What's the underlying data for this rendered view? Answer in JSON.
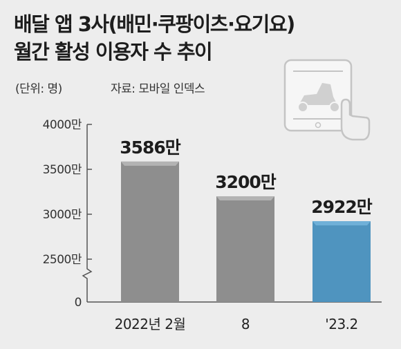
{
  "header": {
    "title_line1": "배달 앱 3사(배민·쿠팡이츠·요기요)",
    "title_line2": "월간 활성 이용자 수 추이",
    "unit": "(단위: 명)",
    "source": "자료: 모바일 인덱스"
  },
  "icons": [
    "tablet-scooter-icon",
    "pointing-hand-icon"
  ],
  "colors": {
    "bar_gray": "#8e8e8e",
    "bar_blue": "#4f94bf"
  },
  "chart_data": {
    "type": "bar",
    "title": "배달 앱 3사(배민·쿠팡이츠·요기요) 월간 활성 이용자 수 추이",
    "ylabel": "(단위: 명)",
    "categories": [
      "2022년 2월",
      "8",
      "'23.2"
    ],
    "values": [
      35860000,
      32000000,
      29220000
    ],
    "value_labels": [
      "3586만",
      "3200만",
      "2922만"
    ],
    "yticks": [
      0,
      25000000,
      30000000,
      35000000,
      40000000
    ],
    "ytick_labels": [
      "0",
      "2500만",
      "3000만",
      "3500만",
      "4000만"
    ],
    "ylim": [
      0,
      40000000
    ],
    "axis_break": true,
    "grid": false,
    "legend": "none"
  }
}
